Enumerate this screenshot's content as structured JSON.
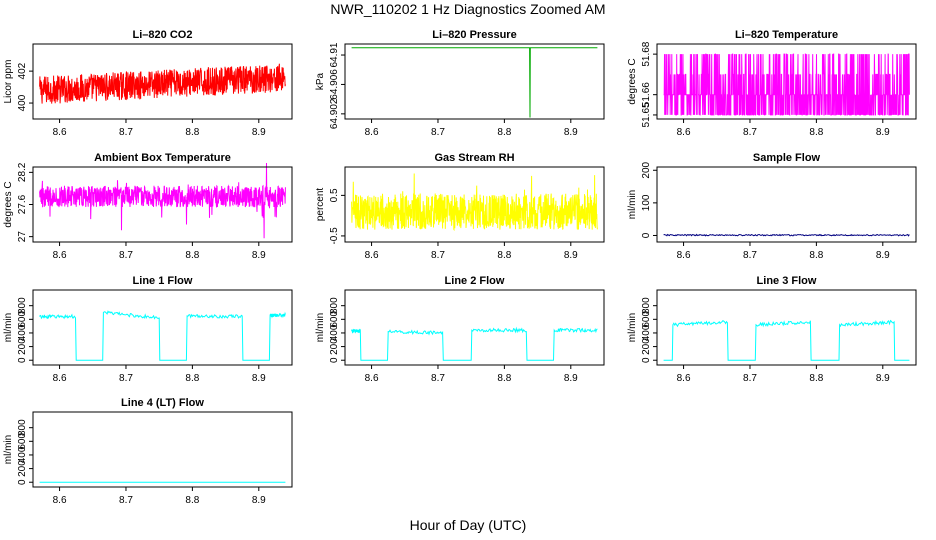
{
  "title": "NWR_110202  1 Hz Diagnostics Zoomed AM",
  "global_xlabel": "Hour of Day (UTC)",
  "chart_data": [
    {
      "id": "co2",
      "type": "line",
      "title": "Li–820 CO2",
      "ylabel": "Licor ppm",
      "color": "#ff0000",
      "xlim": [
        8.56,
        8.95
      ],
      "ylim": [
        399.0,
        403.7
      ],
      "yticks": [
        400,
        402
      ],
      "xticks": [
        8.6,
        8.7,
        8.8,
        8.9
      ],
      "series": [
        {
          "name": "CO2",
          "x": [
            8.57,
            8.6,
            8.63,
            8.66,
            8.7,
            8.73,
            8.76,
            8.8,
            8.83,
            8.86,
            8.9,
            8.94
          ],
          "y": [
            400.8,
            400.9,
            401.0,
            401.0,
            401.1,
            401.2,
            401.3,
            401.4,
            401.4,
            401.5,
            401.6,
            401.6
          ]
        }
      ]
    },
    {
      "id": "pressure",
      "type": "line",
      "title": "Li–820 Pressure",
      "ylabel": "kPa",
      "color": "#00aa00",
      "xlim": [
        8.56,
        8.95
      ],
      "ylim": [
        64.9013,
        64.9115
      ],
      "yticks": [
        64.902,
        64.906,
        64.91
      ],
      "xticks": [
        8.6,
        8.7,
        8.8,
        8.9
      ],
      "series": [
        {
          "name": "Pressure",
          "x": [
            8.57,
            8.838,
            8.8385,
            8.839,
            8.94
          ],
          "y": [
            64.911,
            64.911,
            64.9015,
            64.911,
            64.911
          ]
        }
      ]
    },
    {
      "id": "li820temp",
      "type": "line",
      "title": "Li–820 Temperature",
      "ylabel": "degrees C",
      "color": "#ff00ff",
      "xlim": [
        8.56,
        8.95
      ],
      "ylim": [
        51.648,
        51.685
      ],
      "yticks": [
        51.65,
        51.66,
        51.68
      ],
      "xticks": [
        8.6,
        8.7,
        8.8,
        8.9
      ],
      "series": [
        {
          "name": "Temperature",
          "levels": [
            51.65,
            51.66,
            51.67,
            51.68
          ],
          "x": [
            8.57,
            8.94
          ],
          "y": [
            51.66,
            51.66
          ]
        }
      ]
    },
    {
      "id": "boxtemp",
      "type": "line",
      "title": "Ambient Box Temperature",
      "ylabel": "degrees C",
      "color": "#ff00ff",
      "xlim": [
        8.56,
        8.95
      ],
      "ylim": [
        26.9,
        28.3
      ],
      "yticks": [
        27.0,
        27.6,
        28.2
      ],
      "xticks": [
        8.6,
        8.7,
        8.8,
        8.9
      ],
      "series": [
        {
          "name": "Box Temp",
          "x": [
            8.57,
            8.94
          ],
          "y": [
            27.75,
            27.75
          ]
        }
      ]
    },
    {
      "id": "rh",
      "type": "line",
      "title": "Gas Stream RH",
      "ylabel": "percent",
      "color": "#ffff00",
      "xlim": [
        8.56,
        8.95
      ],
      "ylim": [
        -0.65,
        1.2
      ],
      "yticks": [
        -0.5,
        0.5
      ],
      "xticks": [
        8.6,
        8.7,
        8.8,
        8.9
      ],
      "series": [
        {
          "name": "RH",
          "x": [
            8.57,
            8.94
          ],
          "y": [
            0.1,
            0.1
          ]
        }
      ]
    },
    {
      "id": "sampleflow",
      "type": "line",
      "title": "Sample Flow",
      "ylabel": "ml/min",
      "color": "#000080",
      "xlim": [
        8.56,
        8.95
      ],
      "ylim": [
        -20,
        210
      ],
      "yticks": [
        0,
        100,
        200
      ],
      "xticks": [
        8.6,
        8.7,
        8.8,
        8.9
      ],
      "series": [
        {
          "name": "Sample Flow",
          "x": [
            8.57,
            8.94
          ],
          "y": [
            1,
            1
          ]
        }
      ]
    },
    {
      "id": "line1",
      "type": "line",
      "title": "Line 1 Flow",
      "ylabel": "ml/min",
      "color": "#00ffff",
      "xlim": [
        8.56,
        8.95
      ],
      "ylim": [
        -70,
        1030
      ],
      "yticks": [
        0,
        200,
        400,
        600,
        800
      ],
      "xticks": [
        8.6,
        8.7,
        8.8,
        8.9
      ],
      "series": [
        {
          "name": "Line 1",
          "x": [
            8.57,
            8.624,
            8.625,
            8.665,
            8.666,
            8.75,
            8.751,
            8.791,
            8.792,
            8.875,
            8.876,
            8.916,
            8.917,
            8.94
          ],
          "y": [
            640,
            640,
            0,
            0,
            700,
            620,
            0,
            0,
            650,
            640,
            0,
            0,
            660,
            660
          ]
        }
      ]
    },
    {
      "id": "line2",
      "type": "line",
      "title": "Line 2 Flow",
      "ylabel": "ml/min",
      "color": "#00ffff",
      "xlim": [
        8.56,
        8.95
      ],
      "ylim": [
        -70,
        1030
      ],
      "yticks": [
        0,
        200,
        400,
        600,
        800
      ],
      "xticks": [
        8.6,
        8.7,
        8.8,
        8.9
      ],
      "series": [
        {
          "name": "Line 2",
          "x": [
            8.57,
            8.583,
            8.584,
            8.624,
            8.625,
            8.707,
            8.708,
            8.75,
            8.751,
            8.833,
            8.834,
            8.874,
            8.875,
            8.94
          ],
          "y": [
            430,
            430,
            0,
            0,
            420,
            400,
            0,
            0,
            440,
            440,
            0,
            0,
            440,
            440
          ]
        }
      ]
    },
    {
      "id": "line3",
      "type": "line",
      "title": "Line 3 Flow",
      "ylabel": "ml/min",
      "color": "#00ffff",
      "xlim": [
        8.56,
        8.95
      ],
      "ylim": [
        -70,
        1030
      ],
      "yticks": [
        0,
        200,
        400,
        600,
        800
      ],
      "xticks": [
        8.6,
        8.7,
        8.8,
        8.9
      ],
      "series": [
        {
          "name": "Line 3",
          "x": [
            8.57,
            8.583,
            8.584,
            8.666,
            8.667,
            8.708,
            8.709,
            8.791,
            8.792,
            8.834,
            8.835,
            8.917,
            8.918,
            8.94
          ],
          "y": [
            0,
            0,
            520,
            560,
            0,
            0,
            520,
            560,
            0,
            0,
            520,
            560,
            0,
            0
          ]
        }
      ]
    },
    {
      "id": "line4",
      "type": "line",
      "title": "Line 4 (LT) Flow",
      "ylabel": "ml/min",
      "color": "#00ffff",
      "xlim": [
        8.56,
        8.95
      ],
      "ylim": [
        -70,
        1030
      ],
      "yticks": [
        0,
        200,
        400,
        600,
        800
      ],
      "xticks": [
        8.6,
        8.7,
        8.8,
        8.9
      ],
      "series": [
        {
          "name": "Line 4",
          "x": [
            8.57,
            8.94
          ],
          "y": [
            0,
            0
          ]
        }
      ]
    }
  ]
}
